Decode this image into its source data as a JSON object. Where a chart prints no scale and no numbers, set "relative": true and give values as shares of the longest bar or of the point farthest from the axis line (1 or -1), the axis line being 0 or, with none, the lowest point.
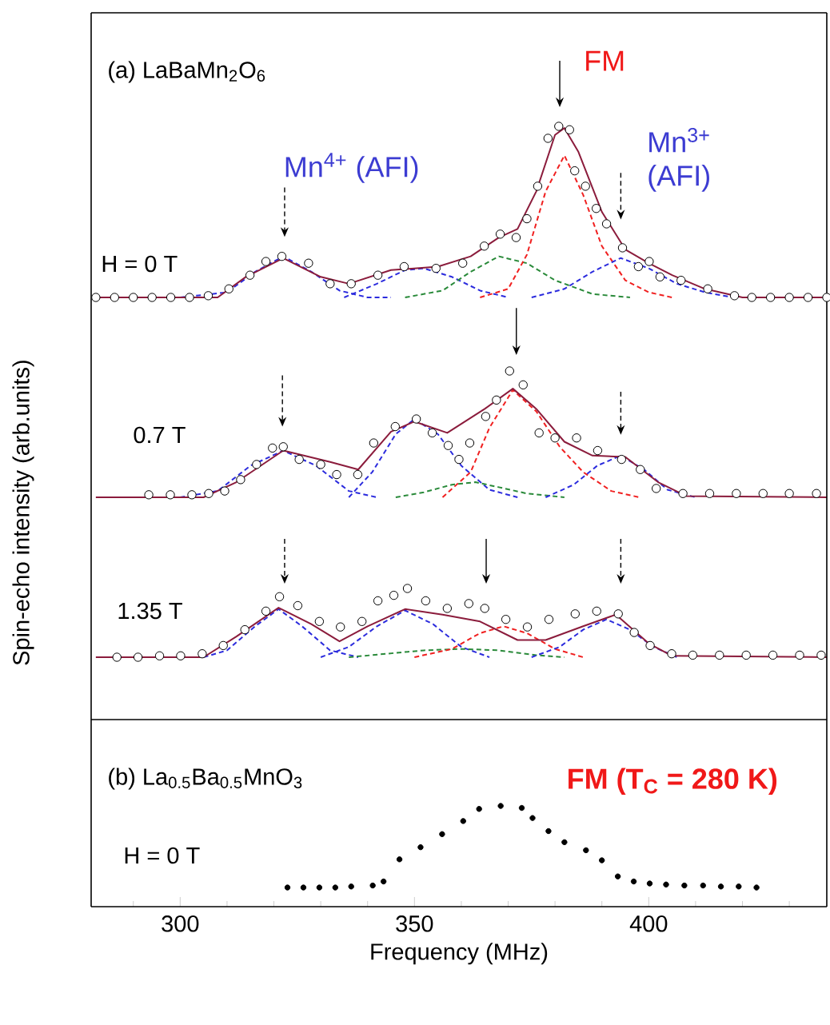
{
  "chart_data": [
    {
      "type": "scatter",
      "relative": true,
      "title": "(a) LaBaMn$_{2}$O$_{6}$",
      "subtitle": "H = 0 T",
      "xlim": [
        281,
        438
      ],
      "annotations": [
        "Mn$^{4+}$ (AFI)",
        "FM",
        "Mn$^{3+}$ (AFI)"
      ],
      "series": [
        {
          "type": "line",
          "line_style": "dashed",
          "color": "#2b2bdd",
          "x": [
            300,
            310,
            316,
            322,
            328,
            334,
            340,
            345
          ],
          "values": [
            0,
            0.03,
            0.15,
            0.24,
            0.15,
            0.04,
            0,
            0
          ]
        },
        {
          "type": "line",
          "line_style": "dashed",
          "color": "#2b2bdd",
          "x": [
            335,
            342,
            348,
            352,
            358,
            364,
            370
          ],
          "values": [
            0,
            0.08,
            0.16,
            0.17,
            0.12,
            0.04,
            0
          ]
        },
        {
          "type": "line",
          "line_style": "dashed",
          "color": "#2a8a3a",
          "x": [
            348,
            356,
            362,
            368,
            374,
            380,
            388,
            396
          ],
          "values": [
            0,
            0.04,
            0.15,
            0.24,
            0.2,
            0.1,
            0.02,
            0
          ]
        },
        {
          "type": "line",
          "line_style": "dashed",
          "color": "#f02020",
          "x": [
            364,
            370,
            374,
            378,
            382,
            386,
            390,
            395,
            400,
            405
          ],
          "values": [
            0,
            0.05,
            0.25,
            0.62,
            0.83,
            0.6,
            0.3,
            0.1,
            0.03,
            0
          ]
        },
        {
          "type": "line",
          "line_style": "dashed",
          "color": "#2b2bdd",
          "x": [
            375,
            382,
            388,
            394,
            400,
            406,
            412,
            418
          ],
          "values": [
            0,
            0.05,
            0.15,
            0.23,
            0.17,
            0.08,
            0.03,
            0
          ]
        },
        {
          "type": "line",
          "line_style": "solid",
          "color": "#8b1c3c",
          "x": [
            282,
            308,
            314,
            322,
            330,
            336,
            345,
            355,
            362,
            368,
            372,
            376,
            380,
            382,
            385,
            390,
            395,
            400,
            405,
            412,
            420,
            438
          ],
          "values": [
            0,
            0,
            0.12,
            0.23,
            0.12,
            0.08,
            0.16,
            0.18,
            0.24,
            0.35,
            0.4,
            0.62,
            0.95,
            0.99,
            0.85,
            0.5,
            0.28,
            0.2,
            0.13,
            0.05,
            0,
            0
          ]
        },
        {
          "marker": "circle",
          "color": "#000000",
          "x": [
            282,
            286,
            290,
            294,
            298,
            302,
            306,
            310.4,
            314.9,
            318.3,
            321.7,
            327.4,
            332,
            336.5,
            342.2,
            347.8,
            354.6,
            360.3,
            364.9,
            368.3,
            371.7,
            374,
            376.3,
            378.5,
            380.8,
            383.1,
            384.2,
            386.5,
            388.8,
            391,
            394.4,
            397.8,
            400.1,
            402.4,
            406.9,
            412.6,
            418.3,
            422,
            426,
            430,
            434,
            438
          ],
          "values": [
            0,
            0,
            0,
            0,
            0,
            0,
            0.01,
            0.05,
            0.13,
            0.21,
            0.24,
            0.2,
            0.08,
            0.08,
            0.13,
            0.18,
            0.17,
            0.2,
            0.3,
            0.37,
            0.35,
            0.46,
            0.65,
            0.93,
            1,
            0.98,
            0.74,
            0.65,
            0.52,
            0.43,
            0.29,
            0.18,
            0.21,
            0.12,
            0.1,
            0.05,
            0.01,
            0,
            0,
            0,
            0,
            0
          ]
        }
      ]
    },
    {
      "type": "scatter",
      "relative": true,
      "subtitle": "0.7 T",
      "ylabel": "Spin-echo intensity (arb.units)",
      "xlim": [
        281,
        438
      ],
      "series": [
        {
          "type": "line",
          "line_style": "dashed",
          "color": "#2b2bdd",
          "x": [
            300,
            308,
            315,
            322,
            329,
            336,
            342
          ],
          "values": [
            0,
            0.05,
            0.25,
            0.37,
            0.25,
            0.05,
            0
          ]
        },
        {
          "type": "line",
          "line_style": "dashed",
          "color": "#2b2bdd",
          "x": [
            336,
            341,
            346,
            350,
            355,
            360,
            366,
            372
          ],
          "values": [
            0,
            0.2,
            0.5,
            0.62,
            0.5,
            0.25,
            0.06,
            0
          ]
        },
        {
          "type": "line",
          "line_style": "dashed",
          "color": "#2a8a3a",
          "x": [
            346,
            352,
            358,
            363,
            368,
            374,
            382
          ],
          "values": [
            0,
            0.04,
            0.1,
            0.12,
            0.08,
            0.03,
            0
          ]
        },
        {
          "type": "line",
          "line_style": "dashed",
          "color": "#f02020",
          "x": [
            356,
            362,
            366,
            371,
            376,
            381,
            386,
            392,
            398
          ],
          "values": [
            0,
            0.2,
            0.55,
            0.85,
            0.68,
            0.4,
            0.2,
            0.05,
            0
          ]
        },
        {
          "type": "line",
          "line_style": "dashed",
          "color": "#2b2bdd",
          "x": [
            378,
            384,
            389,
            394,
            399,
            404,
            410
          ],
          "values": [
            0,
            0.1,
            0.25,
            0.33,
            0.22,
            0.06,
            0
          ]
        },
        {
          "type": "line",
          "line_style": "solid",
          "color": "#8b1c3c",
          "x": [
            282,
            305,
            312,
            322,
            332,
            338,
            345,
            350,
            357,
            365,
            371,
            376,
            382,
            388,
            395,
            402,
            408,
            438
          ],
          "values": [
            0,
            0,
            0.12,
            0.37,
            0.28,
            0.22,
            0.52,
            0.6,
            0.51,
            0.7,
            0.86,
            0.7,
            0.44,
            0.33,
            0.32,
            0.12,
            0.01,
            0
          ]
        },
        {
          "marker": "circle",
          "color": "#000000",
          "x": [
            293.3,
            297.9,
            302.5,
            306.1,
            309.5,
            312.9,
            316.3,
            319.7,
            322,
            325.4,
            330,
            333.4,
            337.9,
            341.3,
            345.9,
            350.4,
            353.8,
            357.2,
            359.5,
            361.8,
            365.2,
            367.5,
            370.3,
            373.2,
            376.6,
            380,
            384.6,
            389.1,
            394.2,
            398.2,
            401.6,
            407.3,
            413,
            418.7,
            424.4,
            430,
            435.8
          ],
          "values": [
            0.02,
            0.02,
            0.02,
            0.03,
            0.05,
            0.14,
            0.26,
            0.39,
            0.4,
            0.3,
            0.26,
            0.18,
            0.18,
            0.43,
            0.56,
            0.62,
            0.51,
            0.41,
            0.3,
            0.43,
            0.64,
            0.77,
            1,
            0.89,
            0.51,
            0.47,
            0.47,
            0.37,
            0.3,
            0.22,
            0.07,
            0.03,
            0.03,
            0.03,
            0.03,
            0.03,
            0.03
          ]
        }
      ]
    },
    {
      "type": "scatter",
      "relative": true,
      "subtitle": "1.35 T",
      "xlim": [
        281,
        438
      ],
      "series": [
        {
          "type": "line",
          "line_style": "dashed",
          "color": "#2b2bdd",
          "x": [
            305,
            310,
            316,
            321,
            326,
            332,
            338
          ],
          "values": [
            0,
            0.1,
            0.45,
            0.7,
            0.45,
            0.1,
            0
          ]
        },
        {
          "type": "line",
          "line_style": "dashed",
          "color": "#2b2bdd",
          "x": [
            330,
            336,
            342,
            348,
            354,
            360,
            366
          ],
          "values": [
            0,
            0.15,
            0.45,
            0.68,
            0.48,
            0.15,
            0
          ]
        },
        {
          "type": "line",
          "line_style": "dashed",
          "color": "#2a8a3a",
          "x": [
            336,
            344,
            352,
            360,
            368,
            376,
            382
          ],
          "values": [
            0,
            0.05,
            0.1,
            0.12,
            0.1,
            0.03,
            0
          ]
        },
        {
          "type": "line",
          "line_style": "dashed",
          "color": "#f02020",
          "x": [
            350,
            358,
            364,
            369,
            374,
            380,
            386
          ],
          "values": [
            0,
            0.12,
            0.35,
            0.45,
            0.35,
            0.12,
            0
          ]
        },
        {
          "type": "line",
          "line_style": "dashed",
          "color": "#2b2bdd",
          "x": [
            375,
            381,
            386,
            391,
            396,
            401,
            406
          ],
          "values": [
            0,
            0.15,
            0.4,
            0.55,
            0.4,
            0.15,
            0
          ]
        },
        {
          "type": "line",
          "line_style": "solid",
          "color": "#8b1c3c",
          "x": [
            282,
            305,
            312,
            321,
            328,
            334,
            340,
            348,
            356,
            364,
            372,
            378,
            386,
            393,
            400,
            405,
            438
          ],
          "values": [
            0,
            0,
            0.3,
            0.72,
            0.48,
            0.23,
            0.45,
            0.7,
            0.62,
            0.52,
            0.25,
            0.25,
            0.45,
            0.62,
            0.2,
            0.02,
            0
          ]
        },
        {
          "marker": "circle",
          "color": "#000000",
          "x": [
            286.5,
            291,
            295.6,
            300.1,
            304.7,
            309.2,
            313.8,
            318.3,
            321.2,
            325.1,
            329.7,
            334.2,
            338.8,
            342.2,
            345.6,
            348.5,
            352.4,
            357,
            361.6,
            365,
            369.5,
            374.1,
            378.7,
            384.3,
            388.9,
            393.5,
            396.9,
            400.3,
            404.9,
            409.4,
            415.1,
            420.8,
            426.5,
            432.2,
            436.8
          ],
          "values": [
            0,
            0,
            0.02,
            0.02,
            0.05,
            0.17,
            0.4,
            0.67,
            0.88,
            0.75,
            0.52,
            0.44,
            0.52,
            0.82,
            0.9,
            1,
            0.82,
            0.71,
            0.78,
            0.71,
            0.55,
            0.44,
            0.55,
            0.63,
            0.67,
            0.63,
            0.36,
            0.17,
            0.05,
            0.03,
            0.03,
            0.03,
            0.03,
            0.03,
            0.03
          ]
        }
      ]
    },
    {
      "type": "scatter",
      "relative": true,
      "title": "(b) La$_{0.5}$Ba$_{0.5}$MnO$_{3}$",
      "subtitle": "H = 0 T",
      "xlabel": "Frequency (MHz)",
      "xlim": [
        281,
        438
      ],
      "xticks": [
        {
          "value": 290,
          "label": null
        },
        300,
        {
          "value": 310,
          "label": null
        },
        {
          "value": 320,
          "label": null
        },
        {
          "value": 330,
          "label": null
        },
        {
          "value": 340,
          "label": null
        },
        350,
        {
          "value": 360,
          "label": null
        },
        {
          "value": 370,
          "label": null
        },
        {
          "value": 380,
          "label": null
        },
        {
          "value": 390,
          "label": null
        },
        400,
        {
          "value": 410,
          "label": null
        },
        {
          "value": 420,
          "label": null
        },
        {
          "value": 430,
          "label": null
        }
      ],
      "annotations": [
        "FM (T$_{C}$ = 280 K)"
      ],
      "series": [
        {
          "marker": "circle",
          "color": "#000000",
          "x": [
            322.9,
            326.3,
            329.7,
            333.1,
            336.5,
            341.1,
            343.4,
            346.8,
            351.3,
            355.9,
            360.4,
            363.8,
            368.4,
            372.9,
            375.2,
            378.6,
            382,
            386.6,
            390,
            393.4,
            396.8,
            400.2,
            403.7,
            407.6,
            411.6,
            415.4,
            419.2,
            423
          ],
          "values": [
            0.19,
            0.19,
            0.19,
            0.19,
            0.2,
            0.21,
            0.25,
            0.47,
            0.59,
            0.72,
            0.85,
            0.97,
            1,
            0.98,
            0.88,
            0.75,
            0.64,
            0.56,
            0.46,
            0.3,
            0.25,
            0.23,
            0.22,
            0.21,
            0.21,
            0.2,
            0.2,
            0.19
          ]
        }
      ]
    }
  ]
}
